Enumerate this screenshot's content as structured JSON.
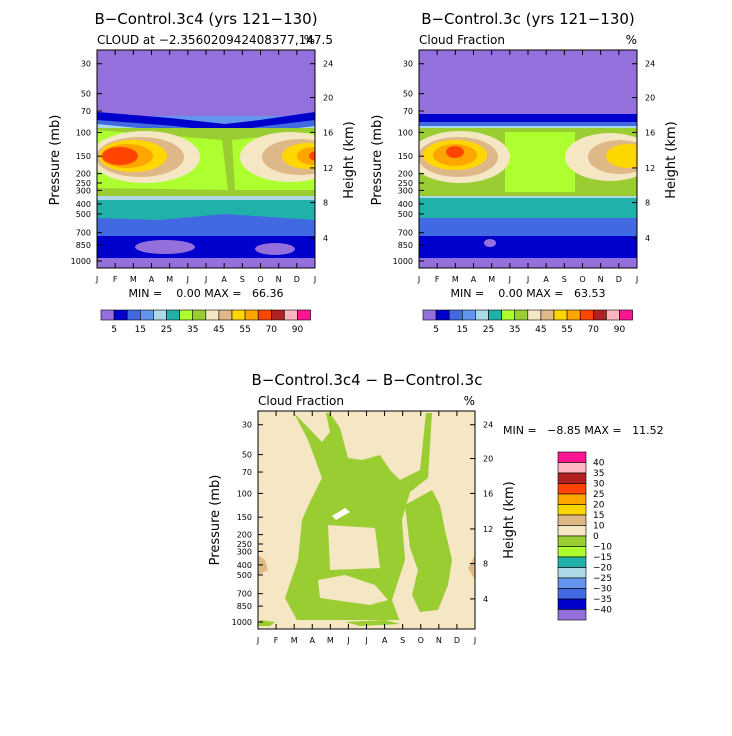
{
  "colors": {
    "palette13": [
      "#9370db",
      "#0000cd",
      "#4169e1",
      "#6495ed",
      "#add8e6",
      "#20b2aa",
      "#adff2f",
      "#9acd32",
      "#f5e6c4",
      "#deb887",
      "#ffd700",
      "#ffa500",
      "#ff4500",
      "#b22222",
      "#ffb6c1",
      "#ff1493"
    ],
    "difference": [
      "#9370db",
      "#0000cd",
      "#4169e1",
      "#6495ed",
      "#add8e6",
      "#20b2aa",
      "#adff2f",
      "#9acd32",
      "#f5e6c4",
      "#deb887",
      "#ffd700",
      "#ffa500",
      "#ff4500",
      "#b22222",
      "#ffb6c1",
      "#ff1493"
    ]
  },
  "chart_data": [
    {
      "type": "contour",
      "title": "B−Control.3c4 (yrs 121−130)",
      "subtitle_left": "CLOUD at −2.356020942408377,147.5",
      "subtitle_right": "%",
      "ylabel": "Pressure (mb)",
      "ylabel_right": "Height (km)",
      "x_ticks": [
        "J",
        "F",
        "M",
        "A",
        "M",
        "J",
        "J",
        "A",
        "S",
        "O",
        "N",
        "D",
        "J"
      ],
      "y_ticks": [
        "30",
        "50",
        "70",
        "100",
        "150",
        "200",
        "250",
        "300",
        "400",
        "500",
        "700",
        "850",
        "1000"
      ],
      "y_ticks_right": [
        "24",
        "20",
        "16",
        "12",
        "8",
        "4"
      ],
      "minmax": "MIN =    0.00 MAX =   66.36",
      "levels": [
        "5",
        "15",
        "25",
        "35",
        "45",
        "55",
        "70",
        "90"
      ],
      "min": 0.0,
      "max": 66.36
    },
    {
      "type": "contour",
      "title": "B−Control.3c (yrs 121−130)",
      "subtitle_left": "Cloud Fraction",
      "subtitle_right": "%",
      "ylabel": "Pressure (mb)",
      "ylabel_right": "Height (km)",
      "x_ticks": [
        "J",
        "F",
        "M",
        "A",
        "M",
        "J",
        "J",
        "A",
        "S",
        "O",
        "N",
        "D",
        "J"
      ],
      "y_ticks": [
        "30",
        "50",
        "70",
        "100",
        "150",
        "200",
        "250",
        "300",
        "400",
        "500",
        "700",
        "850",
        "1000"
      ],
      "y_ticks_right": [
        "24",
        "20",
        "16",
        "12",
        "8",
        "4"
      ],
      "minmax": "MIN =    0.00 MAX =   63.53",
      "levels": [
        "5",
        "15",
        "25",
        "35",
        "45",
        "55",
        "70",
        "90"
      ],
      "min": 0.0,
      "max": 63.53
    },
    {
      "type": "contour",
      "title": "B−Control.3c4 − B−Control.3c",
      "subtitle_left": "Cloud Fraction",
      "subtitle_right": "%",
      "ylabel": "Pressure (mb)",
      "ylabel_right": "Height (km)",
      "x_ticks": [
        "J",
        "F",
        "M",
        "A",
        "M",
        "J",
        "J",
        "A",
        "S",
        "O",
        "N",
        "D",
        "J"
      ],
      "y_ticks": [
        "30",
        "50",
        "70",
        "100",
        "150",
        "200",
        "250",
        "300",
        "400",
        "500",
        "700",
        "850",
        "1000"
      ],
      "y_ticks_right": [
        "24",
        "20",
        "16",
        "12",
        "8",
        "4"
      ],
      "minmax": "MIN =   −8.85 MAX =   11.52",
      "levels": [
        "40",
        "35",
        "30",
        "25",
        "20",
        "15",
        "10",
        "0",
        "−10",
        "−15",
        "−20",
        "−25",
        "−30",
        "−35",
        "−40"
      ],
      "min": -8.85,
      "max": 11.52
    }
  ]
}
